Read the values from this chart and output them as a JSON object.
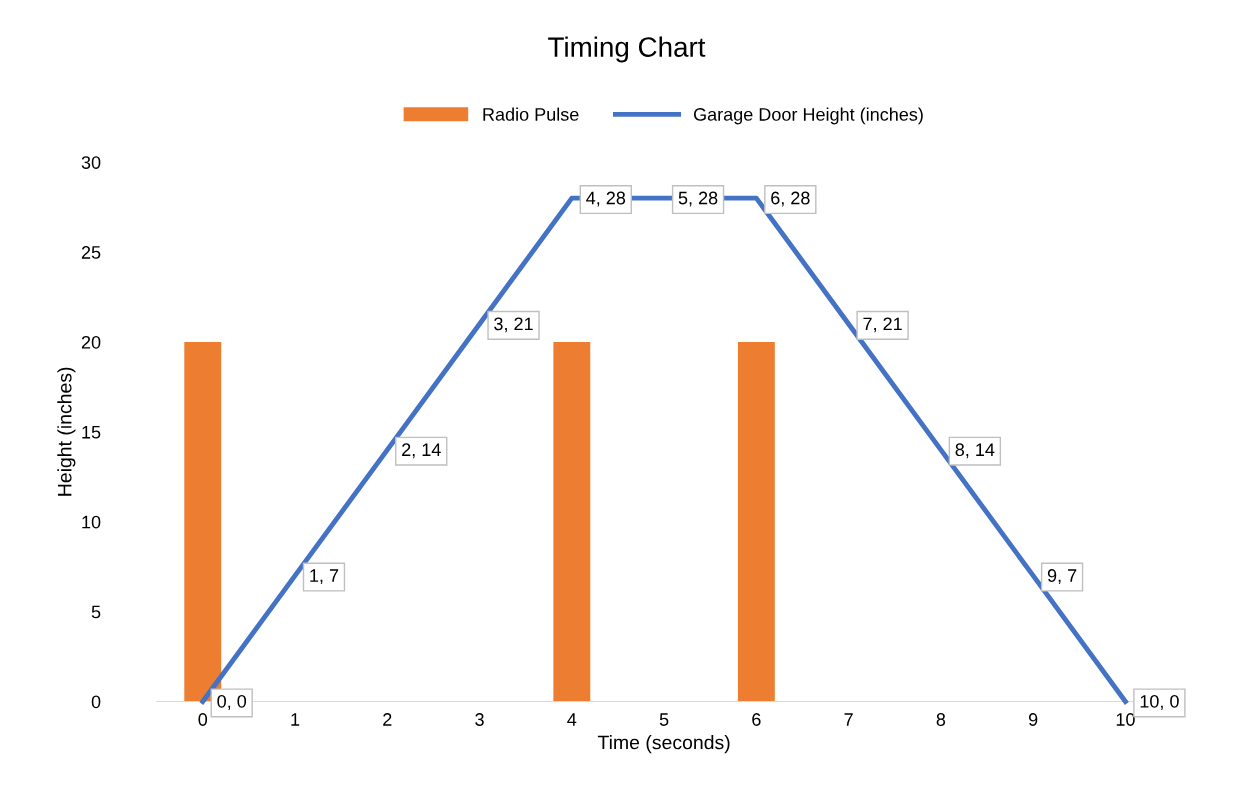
{
  "chart_data": {
    "type": "bar",
    "title": "Timing Chart",
    "xlabel": "Time (seconds)",
    "ylabel": "Height (inches)",
    "categories": [
      "0",
      "1",
      "2",
      "3",
      "4",
      "5",
      "6",
      "7",
      "8",
      "9",
      "10"
    ],
    "series": [
      {
        "name": "Radio Pulse",
        "color": "#ed7d31",
        "values": [
          20,
          null,
          null,
          null,
          20,
          null,
          20,
          null,
          null,
          null,
          null
        ]
      },
      {
        "name": "Garage Door Height (inches)",
        "type": "line",
        "color": "#4472c4",
        "values": [
          0,
          7,
          14,
          21,
          28,
          28,
          28,
          21,
          14,
          7,
          0
        ],
        "value_labels": [
          "0, 0",
          "1, 7",
          "2, 14",
          "3, 21",
          "4, 28",
          "5, 28",
          "6, 28",
          "7, 21",
          "8, 14",
          "9, 7",
          "10, 0"
        ],
        "marker": "none"
      }
    ],
    "ylim": [
      0,
      30
    ],
    "yticks": [
      0,
      5,
      10,
      15,
      20,
      25,
      30
    ],
    "grid": false,
    "legend": "top"
  }
}
